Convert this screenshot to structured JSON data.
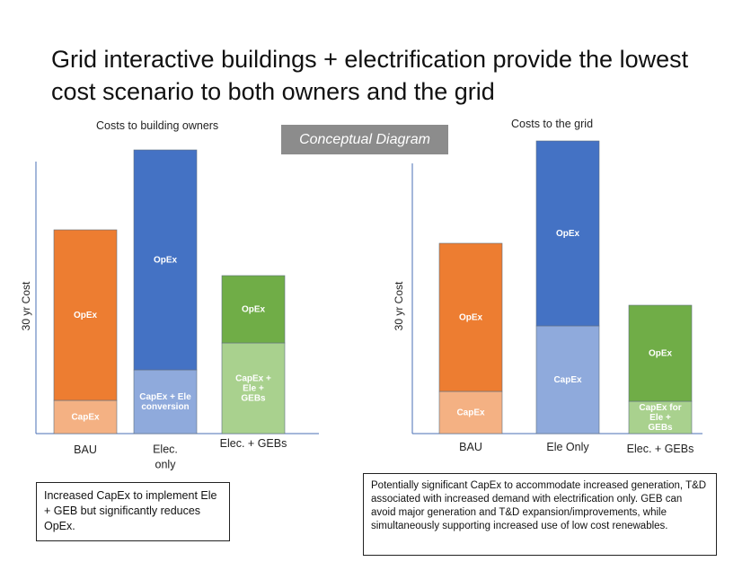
{
  "title": "Grid interactive buildings + electrification provide the lowest cost scenario to both owners and the grid",
  "badge": "Conceptual Diagram",
  "chart_data": [
    {
      "type": "bar",
      "stacked": true,
      "title": "Costs to building owners",
      "ylabel": "30 yr Cost",
      "categories": [
        "BAU",
        "Elec.\nonly",
        "Elec. + GEBs"
      ],
      "segments": [
        [
          {
            "label": "CapEx",
            "value": 37,
            "color": "#f4b183"
          },
          {
            "label": "OpEx",
            "value": 190,
            "color": "#ed7d31"
          }
        ],
        [
          {
            "label": "CapEx + Ele\nconversion",
            "value": 71,
            "color": "#8faadc"
          },
          {
            "label": "OpEx",
            "value": 245,
            "color": "#4472c4"
          }
        ],
        [
          {
            "label": "CapEx +\nEle +\nGEBs",
            "value": 101,
            "color": "#a9d18e"
          },
          {
            "label": "OpEx",
            "value": 75,
            "color": "#70ad47"
          }
        ]
      ]
    },
    {
      "type": "bar",
      "stacked": true,
      "title": "Costs to the grid",
      "ylabel": "30 yr Cost",
      "categories": [
        "BAU",
        "Ele Only",
        "Elec. + GEBs"
      ],
      "segments": [
        [
          {
            "label": "CapEx",
            "value": 47,
            "color": "#f4b183"
          },
          {
            "label": "OpEx",
            "value": 165,
            "color": "#ed7d31"
          }
        ],
        [
          {
            "label": "CapEx",
            "value": 120,
            "color": "#8faadc"
          },
          {
            "label": "OpEx",
            "value": 206,
            "color": "#4472c4"
          }
        ],
        [
          {
            "label": "CapEx for\nEle +\nGEBs",
            "value": 36,
            "color": "#a9d18e"
          },
          {
            "label": "OpEx",
            "value": 107,
            "color": "#70ad47"
          }
        ]
      ]
    }
  ],
  "notes": {
    "left": "Increased CapEx to implement Ele + GEB but significantly reduces OpEx.",
    "right": "Potentially significant CapEx to accommodate increased generation, T&D associated with increased demand with electrification only. GEB can avoid major generation and T&D expansion/improvements, while simultaneously supporting increased use of low cost renewables."
  }
}
